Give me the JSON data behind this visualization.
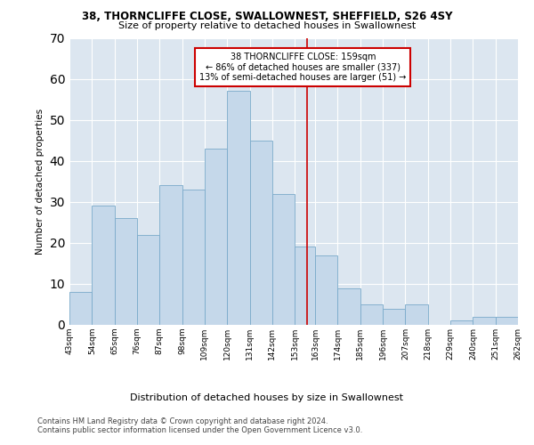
{
  "title1": "38, THORNCLIFFE CLOSE, SWALLOWNEST, SHEFFIELD, S26 4SY",
  "title2": "Size of property relative to detached houses in Swallownest",
  "xlabel": "Distribution of detached houses by size in Swallownest",
  "ylabel": "Number of detached properties",
  "bin_edges": [
    43,
    54,
    65,
    76,
    87,
    98,
    109,
    120,
    131,
    142,
    153,
    163,
    174,
    185,
    196,
    207,
    218,
    229,
    240,
    251,
    262
  ],
  "bar_heights": [
    8,
    29,
    26,
    22,
    34,
    33,
    43,
    57,
    45,
    32,
    19,
    17,
    9,
    5,
    4,
    5,
    0,
    1,
    2,
    2
  ],
  "bar_color": "#c5d8ea",
  "bar_edgecolor": "#7aaaca",
  "property_size": 159,
  "vline_color": "#cc0000",
  "ylim": [
    0,
    70
  ],
  "yticks": [
    0,
    10,
    20,
    30,
    40,
    50,
    60,
    70
  ],
  "annotation_text": "38 THORNCLIFFE CLOSE: 159sqm\n← 86% of detached houses are smaller (337)\n13% of semi-detached houses are larger (51) →",
  "annotation_box_color": "#ffffff",
  "annotation_box_edgecolor": "#cc0000",
  "footer1": "Contains HM Land Registry data © Crown copyright and database right 2024.",
  "footer2": "Contains public sector information licensed under the Open Government Licence v3.0.",
  "background_color": "#dce6f0",
  "tick_labels": [
    "43sqm",
    "54sqm",
    "65sqm",
    "76sqm",
    "87sqm",
    "98sqm",
    "109sqm",
    "120sqm",
    "131sqm",
    "142sqm",
    "153sqm",
    "163sqm",
    "174sqm",
    "185sqm",
    "196sqm",
    "207sqm",
    "218sqm",
    "229sqm",
    "240sqm",
    "251sqm",
    "262sqm"
  ],
  "grid_color": "#ffffff",
  "title1_fontsize": 8.5,
  "title2_fontsize": 8.0,
  "ylabel_fontsize": 7.5,
  "xlabel_fontsize": 8.0,
  "tick_fontsize": 6.5,
  "annotation_fontsize": 7.0,
  "footer_fontsize": 6.0
}
